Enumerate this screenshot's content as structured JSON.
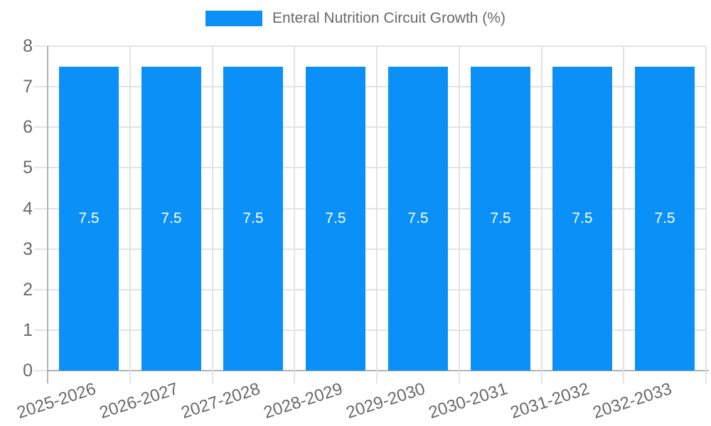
{
  "legend": {
    "label": "Enteral Nutrition Circuit Growth (%)"
  },
  "chart_data": {
    "type": "bar",
    "title": "",
    "series_name": "Enteral Nutrition Circuit Growth (%)",
    "categories": [
      "2025-2026",
      "2026-2027",
      "2027-2028",
      "2028-2029",
      "2029-2030",
      "2030-2031",
      "2031-2032",
      "2032-2033"
    ],
    "values": [
      7.5,
      7.5,
      7.5,
      7.5,
      7.5,
      7.5,
      7.5,
      7.5
    ],
    "bar_labels": [
      "7.5",
      "7.5",
      "7.5",
      "7.5",
      "7.5",
      "7.5",
      "7.5",
      "7.5"
    ],
    "xlabel": "",
    "ylabel": "",
    "ylim": [
      0,
      8
    ],
    "yticks": [
      0,
      1,
      2,
      3,
      4,
      5,
      6,
      7,
      8
    ],
    "grid": true,
    "legend_position": "top",
    "bar_color": "#0a90f6",
    "bar_label_color": "#ffffff",
    "grid_color": "#e3e3e3",
    "axis_color": "#b2b2b2",
    "text_color": "#696969"
  }
}
